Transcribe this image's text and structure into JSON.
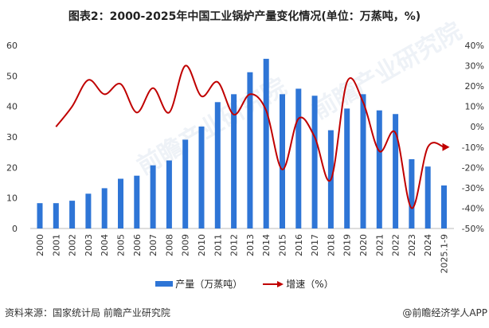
{
  "title": "图表2：2000-2025年中国工业锅炉产量变化情况(单位：万蒸吨，%)",
  "source": "资料来源：国家统计局 前瞻产业研究院",
  "brand": "@前瞻经济学人APP",
  "watermark": "前瞻产业研究院",
  "chart_data": {
    "type": "bar+line",
    "categories": [
      "2000",
      "2001",
      "2002",
      "2003",
      "2004",
      "2005",
      "2006",
      "2007",
      "2008",
      "2009",
      "2010",
      "2011",
      "2012",
      "2013",
      "2014",
      "2015",
      "2016",
      "2017",
      "2018",
      "2019",
      "2020",
      "2021",
      "2022",
      "2023",
      "2024",
      "2025.1-9"
    ],
    "series": [
      {
        "name": "产量（万蒸吨）",
        "type": "bar",
        "axis": "left",
        "color": "#2e75d6",
        "values": [
          8.3,
          8.3,
          9.1,
          11.4,
          13.2,
          16.3,
          17.3,
          20.7,
          22.3,
          29.1,
          33.4,
          41.4,
          44.0,
          51.2,
          55.6,
          44.0,
          45.8,
          43.5,
          32.2,
          39.3,
          44.0,
          38.7,
          37.5,
          22.7,
          20.3,
          14.1
        ]
      },
      {
        "name": "增速（%）",
        "type": "line",
        "axis": "right",
        "color": "#c00000",
        "values": [
          null,
          0,
          10,
          23,
          16,
          21,
          7,
          19,
          7,
          30,
          15,
          22,
          6,
          16,
          8,
          -21,
          4,
          -5,
          -26,
          22,
          12,
          -12,
          -3,
          -40,
          -10,
          -10
        ]
      }
    ],
    "y_left": {
      "range": [
        0,
        60
      ],
      "ticks": [
        "0",
        "10",
        "20",
        "30",
        "40",
        "50",
        "60"
      ]
    },
    "y_right": {
      "range": [
        -50,
        40
      ],
      "ticks": [
        "-50%",
        "-40%",
        "-30%",
        "-20%",
        "-10%",
        "0%",
        "10%",
        "20%",
        "30%",
        "40%"
      ]
    },
    "grid": false,
    "legend": "bottom"
  }
}
